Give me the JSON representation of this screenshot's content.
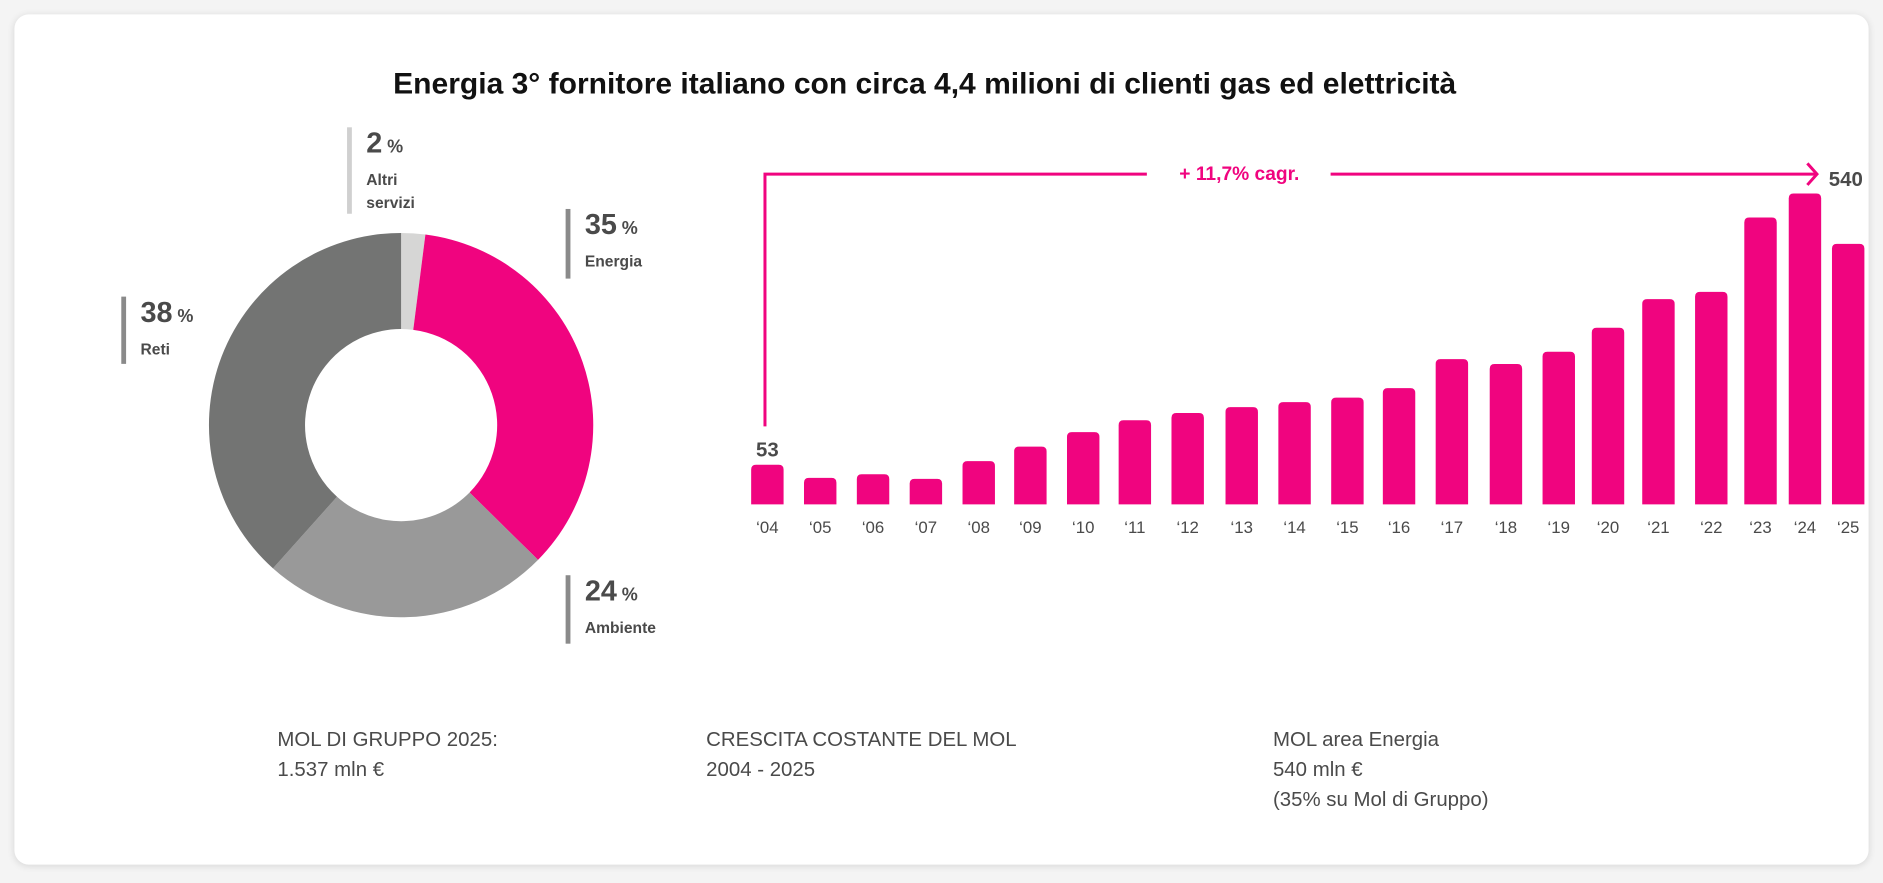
{
  "title": "Energia 3° fornitore italiano con circa 4,4 milioni di clienti gas ed elettricità",
  "chart_data": [
    {
      "type": "pie",
      "variant": "donut",
      "slices": [
        {
          "label": "Altri servizi",
          "value": 2,
          "pct_label": "2",
          "color": "#d6d6d5"
        },
        {
          "label": "Energia",
          "value": 35,
          "pct_label": "35",
          "color": "#f0047f"
        },
        {
          "label": "Ambiente",
          "value": 24,
          "pct_label": "24",
          "color": "#999999"
        },
        {
          "label": "Reti",
          "value": 38,
          "pct_label": "38",
          "color": "#737473"
        }
      ],
      "pct_sign": "%"
    },
    {
      "type": "bar",
      "title": "CRESCITA COSTANTE DEL MOL",
      "categories": [
        "‘04",
        "‘05",
        "‘06",
        "‘07",
        "‘08",
        "‘09",
        "‘10",
        "‘11",
        "‘12",
        "‘13",
        "‘14",
        "‘15",
        "‘16",
        "‘17",
        "‘18",
        "‘19",
        "‘20",
        "‘21",
        "‘22",
        "‘23",
        "‘24",
        "‘25"
      ],
      "values": [
        53,
        24,
        32,
        22,
        61,
        93,
        125,
        151,
        167,
        180,
        191,
        201,
        222,
        286,
        275,
        302,
        355,
        418,
        434,
        598,
        651,
        540
      ],
      "data_labels": {
        "first": "53",
        "last": "540"
      },
      "annotation": "+ 11,7% cagr.",
      "color": "#f0047f",
      "ylabel": "",
      "xlabel": ""
    }
  ],
  "notes": [
    {
      "line1": "MOL DI GRUPPO 2025:",
      "line2": "1.537 mln €"
    },
    {
      "line1": "CRESCITA COSTANTE DEL MOL",
      "line2": "2004 - 2025"
    },
    {
      "line1": "MOL area Energia",
      "line2": "540 mln €",
      "line3": "(35% su Mol di Gruppo)"
    }
  ]
}
